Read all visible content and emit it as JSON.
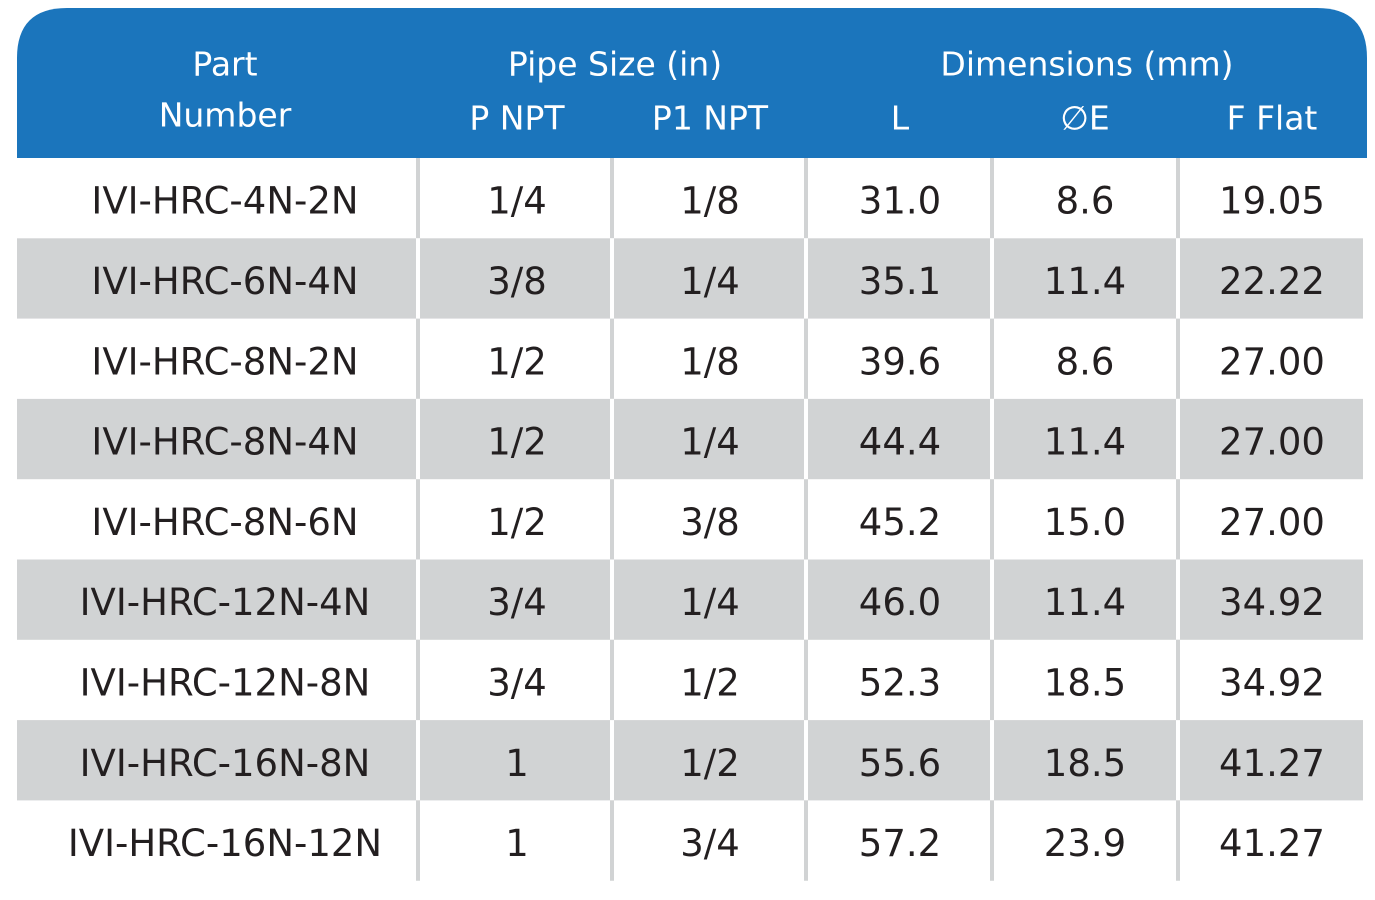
{
  "header": {
    "part_number": [
      "Part",
      "Number"
    ],
    "pipe_size": "Pipe Size (in)",
    "dimensions": "Dimensions (mm)",
    "columns": [
      "P NPT",
      "P1 NPT",
      "L",
      "∅E",
      "F Flat"
    ]
  },
  "table": {
    "rows": [
      [
        "IVI-HRC-4N-2N",
        "1/4",
        "1/8",
        "31.0",
        "8.6",
        "19.05"
      ],
      [
        "IVI-HRC-6N-4N",
        "3/8",
        "1/4",
        "35.1",
        "11.4",
        "22.22"
      ],
      [
        "IVI-HRC-8N-2N",
        "1/2",
        "1/8",
        "39.6",
        "8.6",
        "27.00"
      ],
      [
        "IVI-HRC-8N-4N",
        "1/2",
        "1/4",
        "44.4",
        "11.4",
        "27.00"
      ],
      [
        "IVI-HRC-8N-6N",
        "1/2",
        "3/8",
        "45.2",
        "15.0",
        "27.00"
      ],
      [
        "IVI-HRC-12N-4N",
        "3/4",
        "1/4",
        "46.0",
        "11.4",
        "34.92"
      ],
      [
        "IVI-HRC-12N-8N",
        "3/4",
        "1/2",
        "52.3",
        "18.5",
        "34.92"
      ],
      [
        "IVI-HRC-16N-8N",
        "1",
        "1/2",
        "55.6",
        "18.5",
        "41.27"
      ],
      [
        "IVI-HRC-16N-12N",
        "1",
        "3/4",
        "57.2",
        "23.9",
        "41.27"
      ]
    ]
  }
}
